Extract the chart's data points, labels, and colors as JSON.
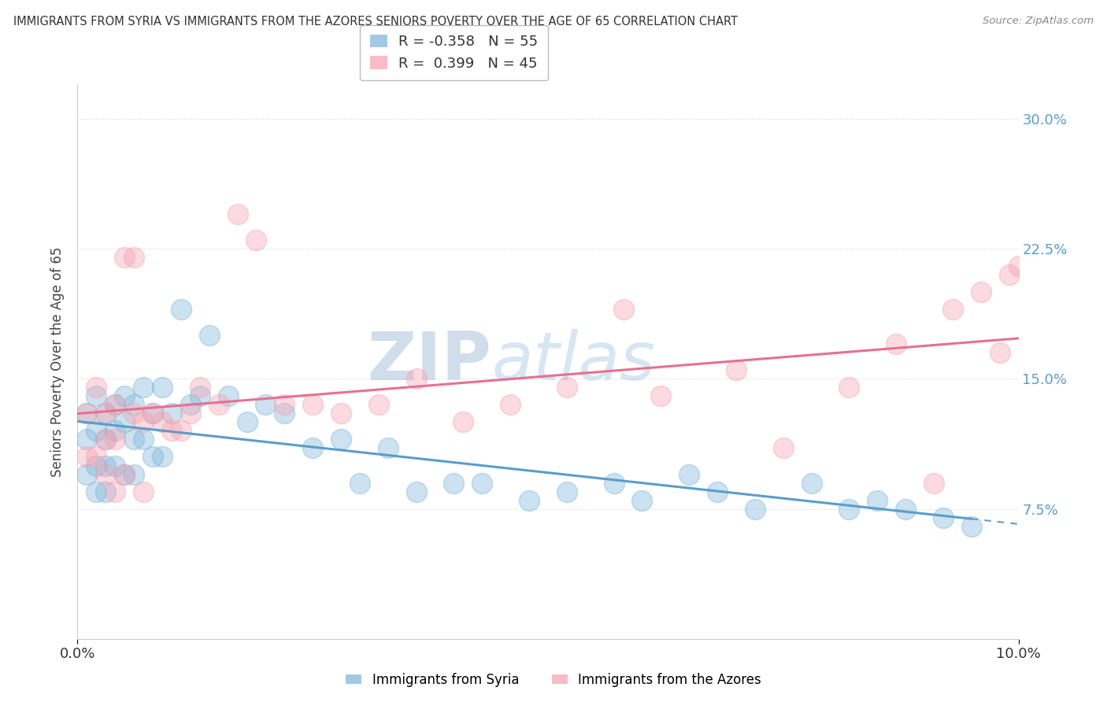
{
  "title": "IMMIGRANTS FROM SYRIA VS IMMIGRANTS FROM THE AZORES SENIORS POVERTY OVER THE AGE OF 65 CORRELATION CHART",
  "source": "Source: ZipAtlas.com",
  "ylabel": "Seniors Poverty Over the Age of 65",
  "xlim": [
    0.0,
    0.1
  ],
  "ylim": [
    0.0,
    0.32
  ],
  "yticks": [
    0.075,
    0.15,
    0.225,
    0.3
  ],
  "ytick_labels": [
    "7.5%",
    "15.0%",
    "22.5%",
    "30.0%"
  ],
  "xticks": [
    0.0,
    0.1
  ],
  "xtick_labels": [
    "0.0%",
    "10.0%"
  ],
  "syria_color": "#7ab3d9",
  "azores_color": "#f7a0b0",
  "syria_line_color": "#5b9dc9",
  "azores_line_color": "#e87090",
  "syria_R": -0.358,
  "syria_N": 55,
  "azores_R": 0.399,
  "azores_N": 45,
  "watermark_zip": "ZIP",
  "watermark_atlas": "atlas",
  "background_color": "#ffffff",
  "grid_color": "#d8d8d8",
  "syria_scatter_x": [
    0.001,
    0.001,
    0.001,
    0.002,
    0.002,
    0.002,
    0.002,
    0.003,
    0.003,
    0.003,
    0.003,
    0.004,
    0.004,
    0.004,
    0.005,
    0.005,
    0.005,
    0.006,
    0.006,
    0.006,
    0.007,
    0.007,
    0.008,
    0.008,
    0.009,
    0.009,
    0.01,
    0.011,
    0.012,
    0.013,
    0.014,
    0.016,
    0.018,
    0.02,
    0.022,
    0.025,
    0.028,
    0.03,
    0.033,
    0.036,
    0.04,
    0.043,
    0.048,
    0.052,
    0.057,
    0.06,
    0.065,
    0.068,
    0.072,
    0.078,
    0.082,
    0.085,
    0.088,
    0.092,
    0.095
  ],
  "syria_scatter_y": [
    0.13,
    0.115,
    0.095,
    0.14,
    0.12,
    0.1,
    0.085,
    0.13,
    0.115,
    0.1,
    0.085,
    0.135,
    0.12,
    0.1,
    0.14,
    0.125,
    0.095,
    0.135,
    0.115,
    0.095,
    0.145,
    0.115,
    0.13,
    0.105,
    0.145,
    0.105,
    0.13,
    0.19,
    0.135,
    0.14,
    0.175,
    0.14,
    0.125,
    0.135,
    0.13,
    0.11,
    0.115,
    0.09,
    0.11,
    0.085,
    0.09,
    0.09,
    0.08,
    0.085,
    0.09,
    0.08,
    0.095,
    0.085,
    0.075,
    0.09,
    0.075,
    0.08,
    0.075,
    0.07,
    0.065
  ],
  "azores_scatter_x": [
    0.001,
    0.001,
    0.002,
    0.002,
    0.003,
    0.003,
    0.003,
    0.004,
    0.004,
    0.004,
    0.005,
    0.005,
    0.006,
    0.006,
    0.007,
    0.007,
    0.008,
    0.009,
    0.01,
    0.011,
    0.012,
    0.013,
    0.015,
    0.017,
    0.019,
    0.022,
    0.025,
    0.028,
    0.032,
    0.036,
    0.041,
    0.046,
    0.052,
    0.058,
    0.062,
    0.07,
    0.075,
    0.082,
    0.087,
    0.091,
    0.093,
    0.096,
    0.098,
    0.099,
    0.1
  ],
  "azores_scatter_y": [
    0.13,
    0.105,
    0.145,
    0.105,
    0.13,
    0.115,
    0.095,
    0.135,
    0.115,
    0.085,
    0.22,
    0.095,
    0.22,
    0.13,
    0.125,
    0.085,
    0.13,
    0.125,
    0.12,
    0.12,
    0.13,
    0.145,
    0.135,
    0.245,
    0.23,
    0.135,
    0.135,
    0.13,
    0.135,
    0.15,
    0.125,
    0.135,
    0.145,
    0.19,
    0.14,
    0.155,
    0.11,
    0.145,
    0.17,
    0.09,
    0.19,
    0.2,
    0.165,
    0.21,
    0.215
  ]
}
